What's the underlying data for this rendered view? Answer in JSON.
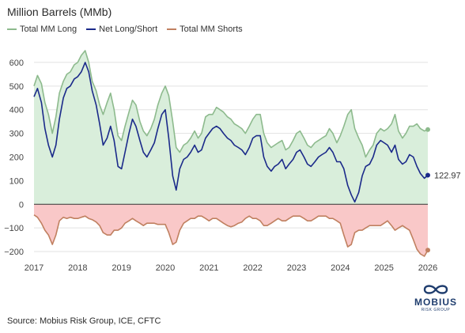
{
  "colors": {
    "long": "#8dba8d",
    "net": "#1b2a8a",
    "shorts": "#c08060",
    "long_fill": "#d9eedb",
    "shorts_fill": "#f9c8c8",
    "grid": "#e2e2e2",
    "zero": "#333333"
  },
  "logo": {
    "word": "MOBIUS",
    "sub": "RISK GROUP"
  },
  "source": "Source: Mobius Risk Group, ICE, CFTC",
  "chart_data": {
    "type": "line",
    "title": "Million Barrels (MMb)",
    "ylim": [
      -240,
      670
    ],
    "xlim": [
      2017.0,
      2026.0
    ],
    "yticks": [
      600,
      500,
      400,
      300,
      200,
      100,
      0,
      -100,
      -200
    ],
    "ytick_labels": [
      "600",
      "500",
      "400",
      "300",
      "200",
      "100",
      "0",
      "−100",
      "−200"
    ],
    "xticks": [
      2017,
      2018,
      2019,
      2020,
      2021,
      2022,
      2023,
      2024,
      2025,
      2026
    ],
    "xtick_labels": [
      "2017",
      "2018",
      "2019",
      "2020",
      "2021",
      "2022",
      "2023",
      "2024",
      "2025",
      "2026"
    ],
    "grid": true,
    "legend": "top-left",
    "end_label": "122.97",
    "x": [
      2017.0,
      2017.08,
      2017.17,
      2017.25,
      2017.33,
      2017.42,
      2017.5,
      2017.58,
      2017.67,
      2017.75,
      2017.83,
      2017.92,
      2018.0,
      2018.08,
      2018.17,
      2018.25,
      2018.33,
      2018.42,
      2018.5,
      2018.58,
      2018.67,
      2018.75,
      2018.83,
      2018.92,
      2019.0,
      2019.08,
      2019.17,
      2019.25,
      2019.33,
      2019.42,
      2019.5,
      2019.58,
      2019.67,
      2019.75,
      2019.83,
      2019.92,
      2020.0,
      2020.08,
      2020.17,
      2020.25,
      2020.33,
      2020.42,
      2020.5,
      2020.58,
      2020.67,
      2020.75,
      2020.83,
      2020.92,
      2021.0,
      2021.08,
      2021.17,
      2021.25,
      2021.33,
      2021.42,
      2021.5,
      2021.58,
      2021.67,
      2021.75,
      2021.83,
      2021.92,
      2022.0,
      2022.08,
      2022.17,
      2022.25,
      2022.33,
      2022.42,
      2022.5,
      2022.58,
      2022.67,
      2022.75,
      2022.83,
      2022.92,
      2023.0,
      2023.08,
      2023.17,
      2023.25,
      2023.33,
      2023.42,
      2023.5,
      2023.58,
      2023.67,
      2023.75,
      2023.83,
      2023.92,
      2024.0,
      2024.08,
      2024.17,
      2024.25,
      2024.33,
      2024.42,
      2024.5,
      2024.58,
      2024.67,
      2024.75,
      2024.83,
      2024.92,
      2025.0,
      2025.08,
      2025.17,
      2025.25,
      2025.33,
      2025.42,
      2025.5,
      2025.58,
      2025.67,
      2025.75,
      2025.83,
      2025.92,
      2026.0
    ],
    "series": [
      {
        "name": "Total MM Long",
        "values": [
          500,
          545,
          510,
          430,
          380,
          300,
          370,
          470,
          520,
          550,
          560,
          590,
          600,
          630,
          650,
          600,
          520,
          480,
          420,
          380,
          430,
          470,
          400,
          290,
          270,
          330,
          390,
          440,
          420,
          350,
          310,
          290,
          320,
          360,
          420,
          470,
          500,
          460,
          350,
          240,
          220,
          250,
          260,
          280,
          310,
          280,
          300,
          370,
          380,
          380,
          410,
          400,
          390,
          370,
          360,
          340,
          330,
          320,
          300,
          330,
          360,
          380,
          380,
          300,
          260,
          240,
          250,
          260,
          270,
          230,
          240,
          270,
          300,
          310,
          280,
          250,
          240,
          260,
          270,
          280,
          290,
          320,
          300,
          260,
          290,
          330,
          380,
          400,
          320,
          280,
          250,
          200,
          230,
          250,
          300,
          320,
          310,
          320,
          340,
          380,
          310,
          280,
          300,
          330,
          330,
          340,
          320,
          310,
          316
        ]
      },
      {
        "name": "Net Long/Short",
        "values": [
          455,
          490,
          430,
          320,
          250,
          200,
          250,
          360,
          450,
          490,
          500,
          530,
          540,
          560,
          600,
          560,
          480,
          420,
          340,
          250,
          280,
          330,
          270,
          160,
          150,
          220,
          300,
          360,
          330,
          270,
          220,
          200,
          230,
          260,
          320,
          380,
          400,
          280,
          120,
          60,
          150,
          190,
          200,
          220,
          250,
          220,
          230,
          280,
          300,
          320,
          330,
          320,
          300,
          280,
          270,
          250,
          240,
          230,
          210,
          240,
          280,
          290,
          290,
          200,
          160,
          140,
          160,
          170,
          190,
          150,
          170,
          190,
          220,
          230,
          200,
          170,
          160,
          180,
          200,
          210,
          220,
          240,
          220,
          180,
          180,
          150,
          80,
          40,
          10,
          50,
          120,
          160,
          170,
          200,
          250,
          270,
          260,
          250,
          220,
          250,
          190,
          170,
          180,
          210,
          200,
          160,
          130,
          110,
          123
        ]
      },
      {
        "name": "Total MM Shorts",
        "values": [
          -45,
          -55,
          -80,
          -110,
          -130,
          -170,
          -130,
          -70,
          -55,
          -60,
          -55,
          -60,
          -60,
          -55,
          -50,
          -60,
          -65,
          -75,
          -90,
          -120,
          -130,
          -130,
          -110,
          -110,
          -100,
          -80,
          -70,
          -60,
          -70,
          -80,
          -90,
          -80,
          -80,
          -80,
          -85,
          -85,
          -85,
          -120,
          -170,
          -160,
          -110,
          -80,
          -70,
          -60,
          -60,
          -50,
          -50,
          -60,
          -70,
          -60,
          -60,
          -70,
          -80,
          -90,
          -95,
          -90,
          -80,
          -75,
          -60,
          -50,
          -60,
          -60,
          -70,
          -90,
          -90,
          -80,
          -70,
          -60,
          -70,
          -70,
          -60,
          -50,
          -50,
          -50,
          -60,
          -70,
          -70,
          -60,
          -50,
          -50,
          -50,
          -60,
          -60,
          -70,
          -80,
          -130,
          -180,
          -170,
          -120,
          -110,
          -110,
          -100,
          -90,
          -90,
          -90,
          -90,
          -80,
          -70,
          -90,
          -110,
          -100,
          -90,
          -100,
          -110,
          -150,
          -190,
          -210,
          -220,
          -194
        ]
      }
    ]
  }
}
